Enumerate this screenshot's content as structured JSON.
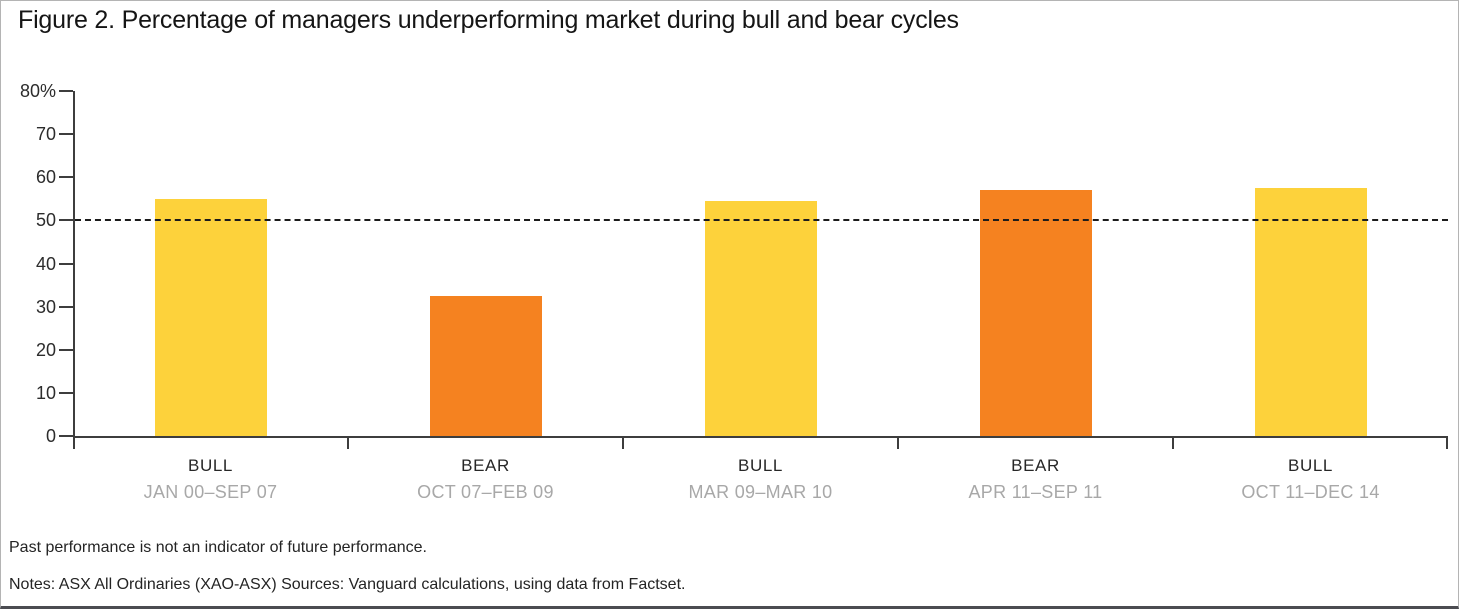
{
  "figure": {
    "title": "Figure 2. Percentage of managers underperforming market during bull and bear cycles",
    "footnote_performance": "Past performance is not an indicator of future performance.",
    "footnote_notes": "Notes: ASX All Ordinaries (XAO-ASX) Sources: Vanguard calculations, using data from Factset."
  },
  "chart_data": {
    "type": "bar",
    "title": "Figure 2. Percentage of managers underperforming market during bull and bear cycles",
    "categories": [
      "BULL",
      "BEAR",
      "BULL",
      "BEAR",
      "BULL"
    ],
    "category_periods": [
      "JAN 00–SEP 07",
      "OCT 07–FEB 09",
      "MAR 09–MAR 10",
      "APR 11–SEP 11",
      "OCT 11–DEC 14"
    ],
    "values": [
      55,
      32.5,
      54.5,
      57,
      57.5
    ],
    "bar_colors": [
      "#FDD23B",
      "#F58220",
      "#FDD23B",
      "#F58220",
      "#FDD23B"
    ],
    "color_legend": {
      "bull": "#FDD23B",
      "bear": "#F58220"
    },
    "xlabel": "",
    "ylabel": "",
    "y_axis_unit": "%",
    "ylim": [
      0,
      80
    ],
    "y_tick_interval": 10,
    "y_tick_labels": [
      "80%",
      "70",
      "60",
      "50",
      "40",
      "30",
      "20",
      "10",
      "0"
    ],
    "reference_line_y": 50,
    "reference_line_style": "dashed",
    "grid": false,
    "legend_position": "none"
  }
}
